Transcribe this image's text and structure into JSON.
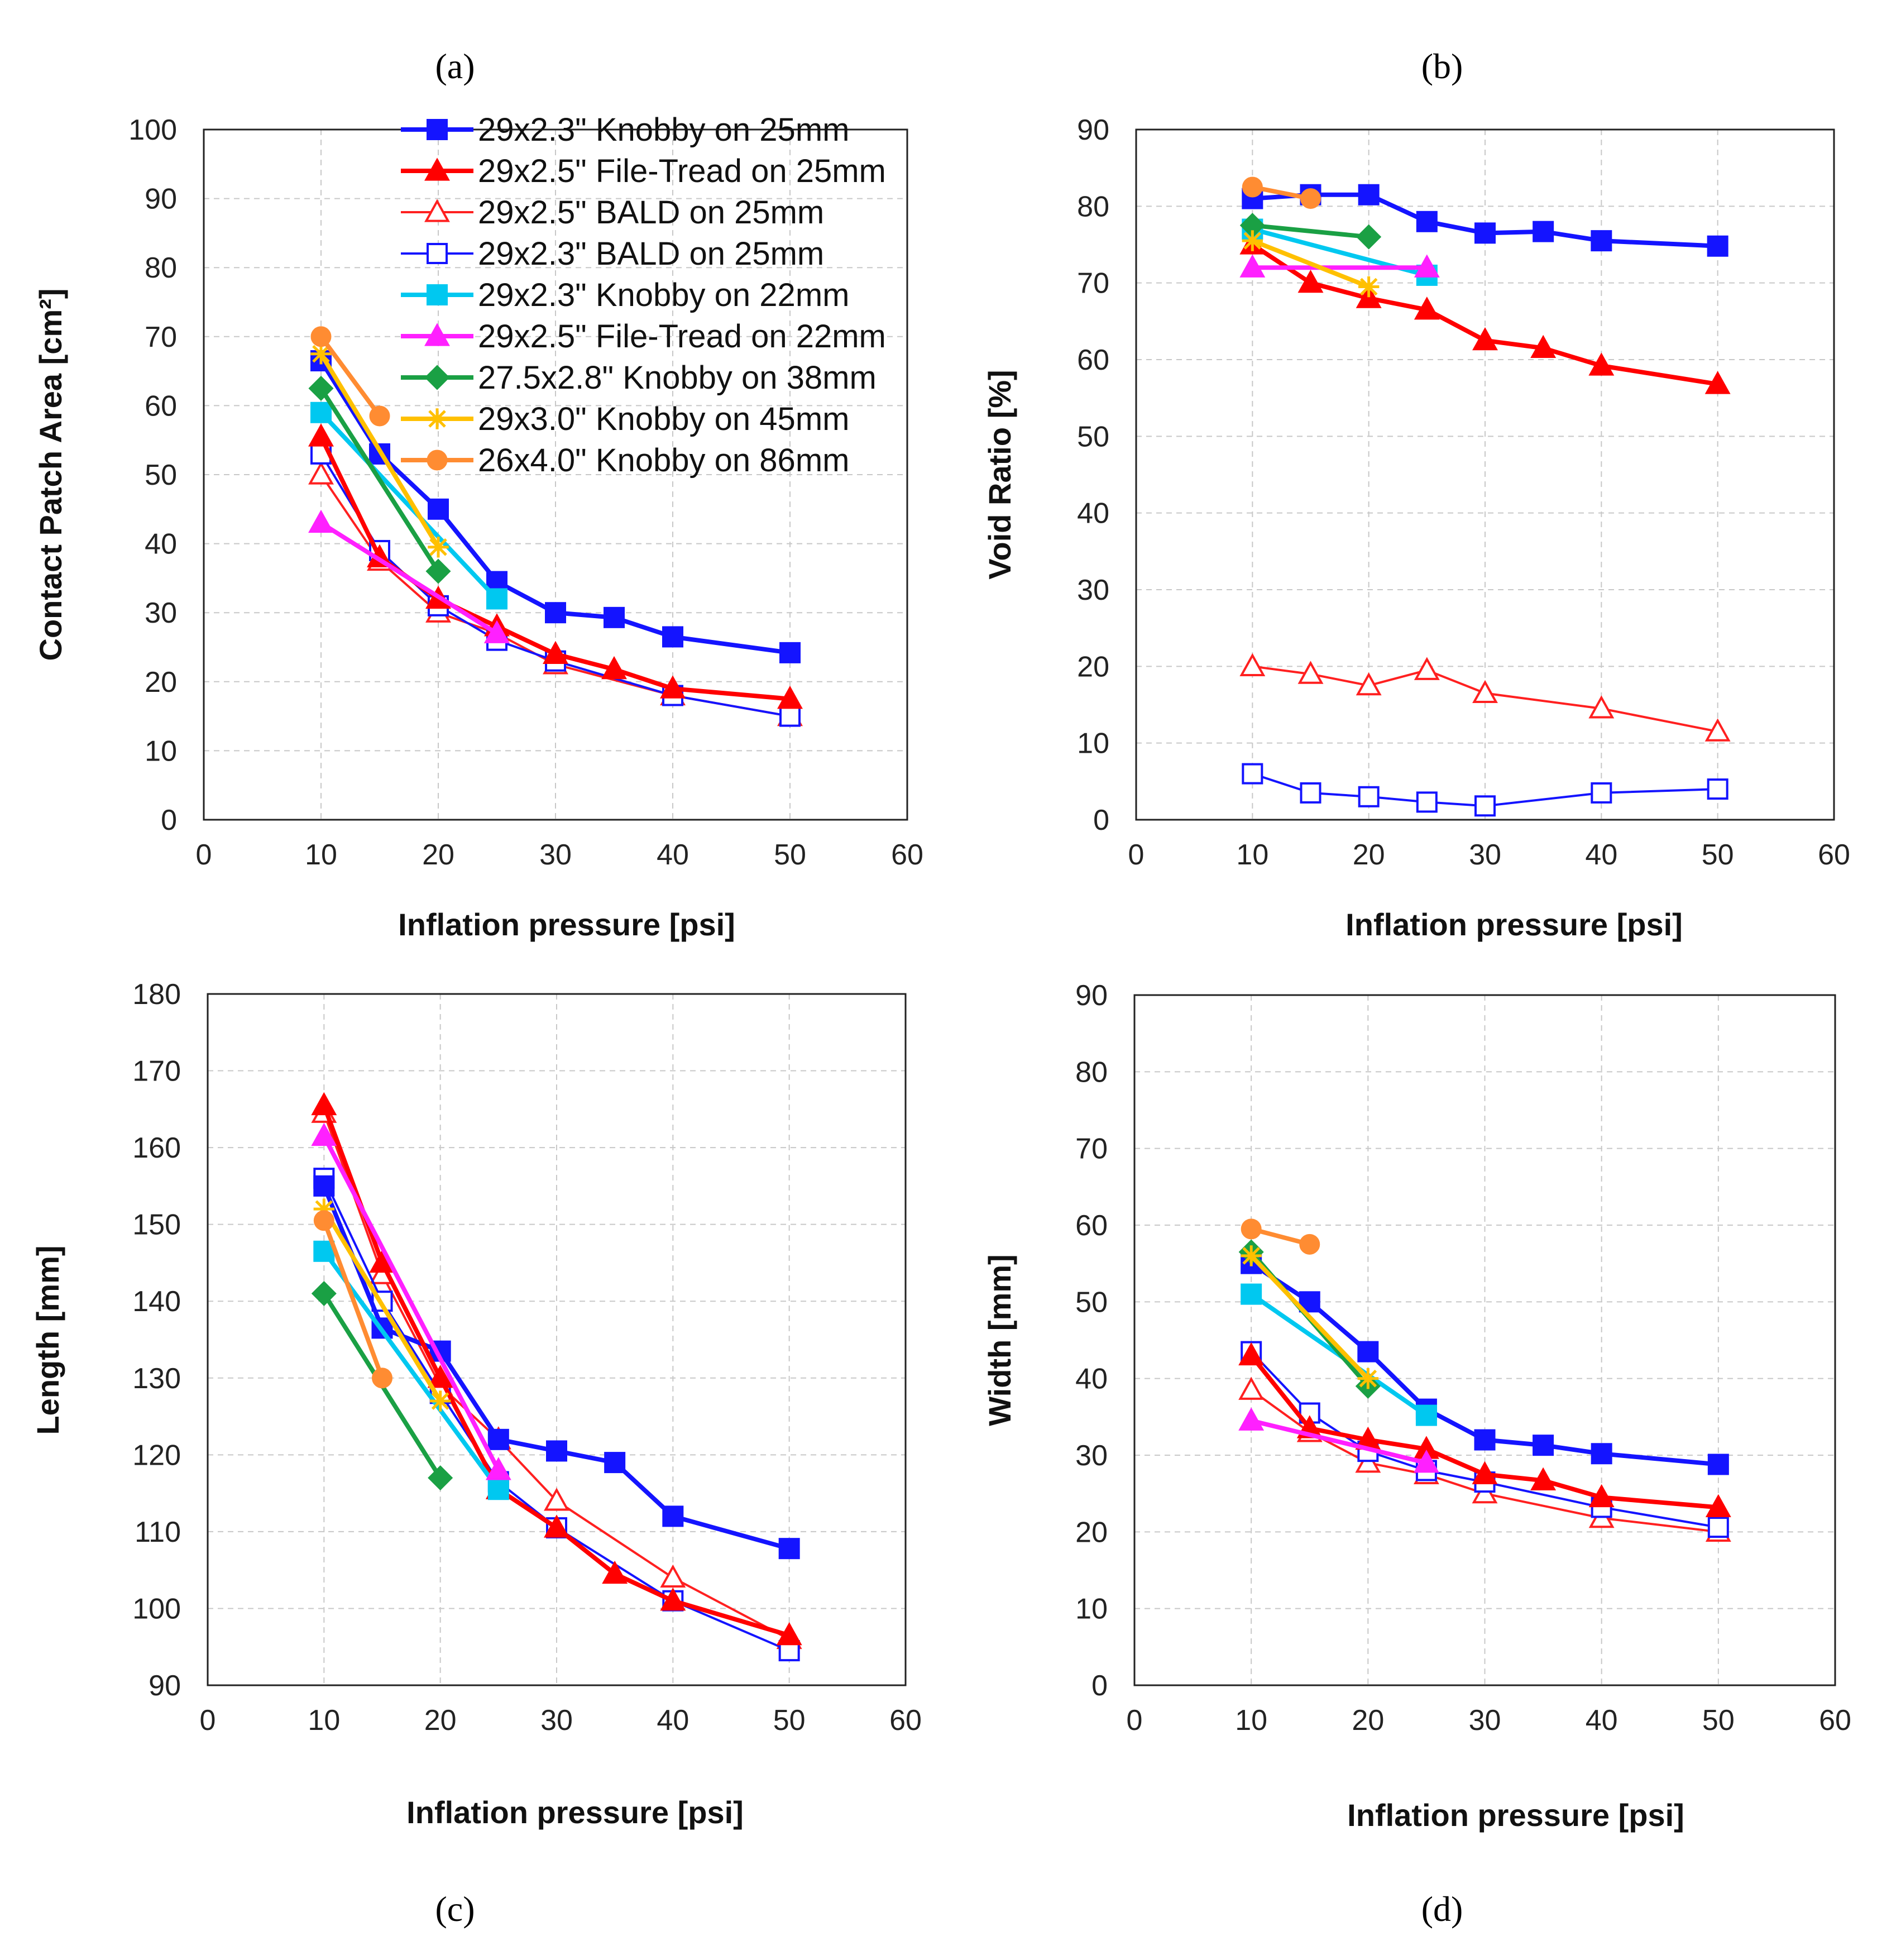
{
  "colors": {
    "knobby25": "#1414ff",
    "filetread25": "#ff0000",
    "bald25_red": "#ff2020",
    "bald23_blue": "#1414ff",
    "knobby22": "#00c8f0",
    "filetread22": "#ff20ff",
    "knobby38": "#1aa044",
    "knobby45": "#ffc000",
    "knobby86": "#ff8c32"
  },
  "legend": [
    {
      "key": "s1",
      "label": "29x2.3\" Knobby on 25mm",
      "color": "#1414ff",
      "marker": "square-filled",
      "width": 8
    },
    {
      "key": "s2",
      "label": "29x2.5\" File-Tread on 25mm",
      "color": "#ff0000",
      "marker": "triangle-filled",
      "width": 8
    },
    {
      "key": "s3",
      "label": "29x2.5\" BALD on 25mm",
      "color": "#ff2020",
      "marker": "triangle-open",
      "width": 4
    },
    {
      "key": "s4",
      "label": "29x2.3\" BALD on 25mm",
      "color": "#1414ff",
      "marker": "square-open",
      "width": 4
    },
    {
      "key": "s5",
      "label": "29x2.3\" Knobby on 22mm",
      "color": "#00c8f0",
      "marker": "square-filled",
      "width": 8
    },
    {
      "key": "s6",
      "label": "29x2.5\" File-Tread on 22mm",
      "color": "#ff20ff",
      "marker": "triangle-filled",
      "width": 8
    },
    {
      "key": "s7",
      "label": "27.5x2.8\" Knobby on 38mm",
      "color": "#1aa044",
      "marker": "diamond-filled",
      "width": 8
    },
    {
      "key": "s8",
      "label": "29x3.0\" Knobby on 45mm",
      "color": "#ffc000",
      "marker": "star",
      "width": 8
    },
    {
      "key": "s9",
      "label": "26x4.0\" Knobby on 86mm",
      "color": "#ff8c32",
      "marker": "circle-filled",
      "width": 8
    }
  ],
  "chart_data": [
    {
      "panel": "(a)",
      "type": "line",
      "xlabel": "Inflation pressure [psi]",
      "ylabel": "Contact Patch  Area [cm²]",
      "xlim": [
        0,
        60
      ],
      "xticks": [
        0,
        10,
        20,
        30,
        40,
        50,
        60
      ],
      "ylim": [
        0,
        100
      ],
      "yticks": [
        0,
        10,
        20,
        30,
        40,
        50,
        60,
        70,
        80,
        90,
        100
      ],
      "series": [
        {
          "key": "s1",
          "x": [
            10,
            15,
            20,
            25,
            30,
            35,
            40,
            50
          ],
          "y": [
            66.5,
            53,
            45,
            34.5,
            30,
            29.3,
            26.5,
            24.2
          ]
        },
        {
          "key": "s2",
          "x": [
            10,
            15,
            20,
            25,
            30,
            35,
            40,
            50
          ],
          "y": [
            55.5,
            38,
            32,
            28,
            24,
            21.8,
            19,
            17.5
          ]
        },
        {
          "key": "s3",
          "x": [
            10,
            15,
            20,
            25,
            30,
            40,
            50
          ],
          "y": [
            50,
            37.5,
            30,
            27,
            22.5,
            18,
            15
          ]
        },
        {
          "key": "s4",
          "x": [
            10,
            15,
            20,
            25,
            30,
            40,
            50
          ],
          "y": [
            53,
            39,
            31,
            26,
            23,
            18,
            15
          ]
        },
        {
          "key": "s5",
          "x": [
            10,
            25
          ],
          "y": [
            59,
            32
          ]
        },
        {
          "key": "s6",
          "x": [
            10,
            25
          ],
          "y": [
            43,
            27
          ]
        },
        {
          "key": "s7",
          "x": [
            10,
            20
          ],
          "y": [
            62.5,
            36
          ]
        },
        {
          "key": "s8",
          "x": [
            10,
            20
          ],
          "y": [
            67.5,
            39.5
          ]
        },
        {
          "key": "s9",
          "x": [
            10,
            15
          ],
          "y": [
            70,
            58.5
          ]
        }
      ]
    },
    {
      "panel": "(b)",
      "type": "line",
      "xlabel": "Inflation pressure [psi]",
      "ylabel": "Void Ratio [%]",
      "xlim": [
        0,
        60
      ],
      "xticks": [
        0,
        10,
        20,
        30,
        40,
        50,
        60
      ],
      "ylim": [
        0,
        90
      ],
      "yticks": [
        0,
        10,
        20,
        30,
        40,
        50,
        60,
        70,
        80,
        90
      ],
      "series": [
        {
          "key": "s1",
          "x": [
            10,
            15,
            20,
            25,
            30,
            35,
            40,
            50
          ],
          "y": [
            81,
            81.5,
            81.5,
            78,
            76.5,
            76.7,
            75.5,
            74.8
          ]
        },
        {
          "key": "s2",
          "x": [
            10,
            15,
            20,
            25,
            30,
            35,
            40,
            50
          ],
          "y": [
            75,
            70,
            68,
            66.5,
            62.5,
            61.5,
            59.2,
            56.8
          ]
        },
        {
          "key": "s3",
          "x": [
            10,
            15,
            20,
            25,
            30,
            40,
            50
          ],
          "y": [
            20,
            19,
            17.5,
            19.5,
            16.5,
            14.5,
            11.5
          ]
        },
        {
          "key": "s4",
          "x": [
            10,
            15,
            20,
            25,
            30,
            40,
            50
          ],
          "y": [
            6,
            3.5,
            3,
            2.3,
            1.8,
            3.5,
            4
          ]
        },
        {
          "key": "s5",
          "x": [
            10,
            25
          ],
          "y": [
            77,
            71
          ]
        },
        {
          "key": "s6",
          "x": [
            10,
            25
          ],
          "y": [
            72,
            72
          ]
        },
        {
          "key": "s7",
          "x": [
            10,
            20
          ],
          "y": [
            77.5,
            76
          ]
        },
        {
          "key": "s8",
          "x": [
            10,
            20
          ],
          "y": [
            75.5,
            69.5
          ]
        },
        {
          "key": "s9",
          "x": [
            10,
            15
          ],
          "y": [
            82.5,
            81
          ]
        }
      ]
    },
    {
      "panel": "(c)",
      "type": "line",
      "xlabel": "Inflation pressure [psi]",
      "ylabel": "Length [mm]",
      "xlim": [
        0,
        60
      ],
      "xticks": [
        0,
        10,
        20,
        30,
        40,
        50,
        60
      ],
      "ylim": [
        90,
        180
      ],
      "yticks": [
        90,
        100,
        110,
        120,
        130,
        140,
        150,
        160,
        170,
        180
      ],
      "series": [
        {
          "key": "s1",
          "x": [
            10,
            15,
            20,
            25,
            30,
            35,
            40,
            50
          ],
          "y": [
            155,
            136.5,
            133.5,
            122,
            120.5,
            119,
            112,
            107.8
          ]
        },
        {
          "key": "s2",
          "x": [
            10,
            15,
            20,
            25,
            30,
            35,
            40,
            50
          ],
          "y": [
            165.5,
            145,
            130,
            115.5,
            110.5,
            104.5,
            101,
            96.5
          ]
        },
        {
          "key": "s3",
          "x": [
            10,
            15,
            20,
            25,
            30,
            40,
            50
          ],
          "y": [
            164.5,
            143.5,
            129,
            122,
            114,
            104,
            96
          ]
        },
        {
          "key": "s4",
          "x": [
            10,
            15,
            20,
            25,
            30,
            40,
            50
          ],
          "y": [
            156,
            140,
            128,
            116.5,
            110.5,
            101,
            94.5
          ]
        },
        {
          "key": "s5",
          "x": [
            10,
            25
          ],
          "y": [
            146.5,
            115.5
          ]
        },
        {
          "key": "s6",
          "x": [
            10,
            25
          ],
          "y": [
            161.5,
            118
          ]
        },
        {
          "key": "s7",
          "x": [
            10,
            20
          ],
          "y": [
            141,
            117
          ]
        },
        {
          "key": "s8",
          "x": [
            10,
            20
          ],
          "y": [
            152,
            127
          ]
        },
        {
          "key": "s9",
          "x": [
            10,
            15
          ],
          "y": [
            150.5,
            130
          ]
        }
      ]
    },
    {
      "panel": "(d)",
      "type": "line",
      "xlabel": "Inflation pressure [psi]",
      "ylabel": "Width [mm]",
      "xlim": [
        0,
        60
      ],
      "xticks": [
        0,
        10,
        20,
        30,
        40,
        50,
        60
      ],
      "ylim": [
        0,
        90
      ],
      "yticks": [
        0,
        10,
        20,
        30,
        40,
        50,
        60,
        70,
        80,
        90
      ],
      "series": [
        {
          "key": "s1",
          "x": [
            10,
            15,
            20,
            25,
            30,
            35,
            40,
            50
          ],
          "y": [
            55,
            50,
            43.5,
            36,
            32,
            31.3,
            30.2,
            28.8
          ]
        },
        {
          "key": "s2",
          "x": [
            10,
            15,
            20,
            25,
            30,
            35,
            40,
            50
          ],
          "y": [
            43,
            33.5,
            32,
            30.8,
            27.5,
            26.7,
            24.5,
            23.2
          ]
        },
        {
          "key": "s3",
          "x": [
            10,
            15,
            20,
            25,
            30,
            40,
            50
          ],
          "y": [
            38.5,
            33,
            29,
            27.5,
            25,
            21.8,
            20
          ]
        },
        {
          "key": "s4",
          "x": [
            10,
            15,
            20,
            25,
            30,
            40,
            50
          ],
          "y": [
            43.5,
            35.5,
            30.5,
            28,
            26.5,
            23.2,
            20.6
          ]
        },
        {
          "key": "s5",
          "x": [
            10,
            25
          ],
          "y": [
            51,
            35.2
          ]
        },
        {
          "key": "s6",
          "x": [
            10,
            25
          ],
          "y": [
            34.5,
            29
          ]
        },
        {
          "key": "s7",
          "x": [
            10,
            20
          ],
          "y": [
            56.5,
            39
          ]
        },
        {
          "key": "s8",
          "x": [
            10,
            20
          ],
          "y": [
            56,
            40
          ]
        },
        {
          "key": "s9",
          "x": [
            10,
            15
          ],
          "y": [
            59.5,
            57.5
          ]
        }
      ]
    }
  ]
}
